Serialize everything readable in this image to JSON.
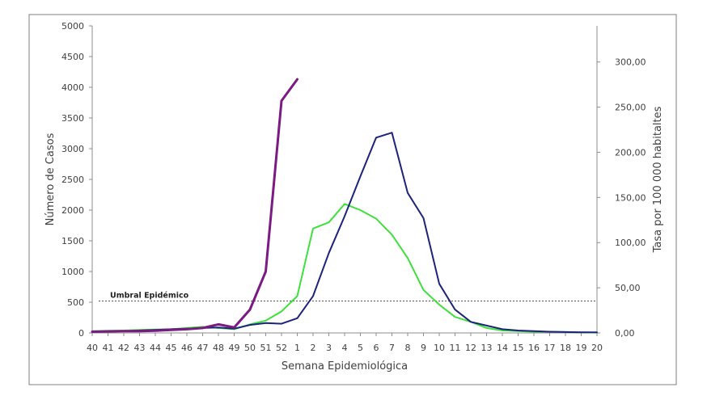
{
  "chart_data": {
    "type": "line",
    "xlabel": "Semana Epidemiológica",
    "ylabel": "Número de Casos",
    "y2label": "Tasa por 100 000 habitaltes",
    "ylim": [
      0,
      5000
    ],
    "y2lim": [
      0,
      340
    ],
    "yticks": [
      "0",
      "500",
      "1000",
      "1500",
      "2000",
      "2500",
      "3000",
      "3500",
      "4000",
      "4500",
      "5000"
    ],
    "y2ticks": [
      "0,00",
      "50,00",
      "100,00",
      "150,00",
      "200,00",
      "250,00",
      "300,00"
    ],
    "categories": [
      "40",
      "41",
      "42",
      "43",
      "44",
      "45",
      "46",
      "47",
      "48",
      "49",
      "50",
      "51",
      "52",
      "1",
      "2",
      "3",
      "4",
      "5",
      "6",
      "7",
      "8",
      "9",
      "10",
      "11",
      "12",
      "13",
      "14",
      "15",
      "16",
      "17",
      "18",
      "19",
      "20"
    ],
    "threshold": {
      "label": "Umbral Epidémico",
      "value": 520
    },
    "series": [
      {
        "color": "#7a1a82",
        "values": [
          20,
          25,
          30,
          30,
          35,
          50,
          60,
          80,
          140,
          90,
          380,
          1000,
          3780,
          4130,
          null,
          null,
          null,
          null,
          null,
          null,
          null,
          null,
          null,
          null,
          null,
          null,
          null,
          null,
          null,
          null,
          null,
          null,
          null
        ]
      },
      {
        "color": "#1c237a",
        "values": [
          20,
          25,
          30,
          40,
          50,
          60,
          70,
          80,
          90,
          70,
          130,
          160,
          150,
          240,
          600,
          1300,
          1900,
          2550,
          3180,
          3260,
          2280,
          1870,
          800,
          380,
          180,
          120,
          60,
          40,
          30,
          20,
          15,
          10,
          10
        ]
      },
      {
        "color": "#3ee03a",
        "values": [
          30,
          35,
          40,
          50,
          55,
          60,
          80,
          100,
          80,
          60,
          140,
          200,
          350,
          600,
          1700,
          1800,
          2100,
          2000,
          1860,
          1600,
          1220,
          700,
          460,
          260,
          180,
          80,
          40,
          30,
          20,
          20,
          15,
          10,
          5
        ]
      }
    ]
  }
}
